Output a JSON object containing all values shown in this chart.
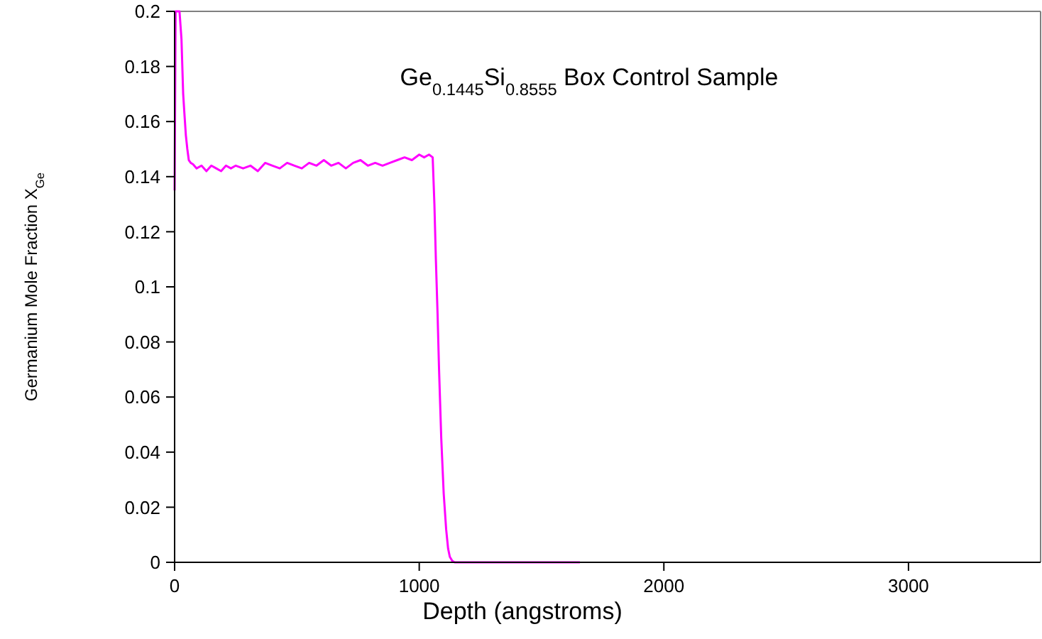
{
  "chart_data": {
    "type": "line",
    "title": "Ge$_{0.1445}$Si$_{0.8555}$ Box Control Sample",
    "xlabel": "Depth (angstroms)",
    "ylabel": "Germanium Mole Fraction X$_{Ge}$",
    "xlim": [
      0,
      3540
    ],
    "ylim": [
      0,
      0.2
    ],
    "xticks": [
      0,
      1000,
      2000,
      3000
    ],
    "yticks": [
      0,
      0.02,
      0.04,
      0.06,
      0.08,
      0.1,
      0.12,
      0.14,
      0.16,
      0.18,
      0.2
    ],
    "grid": false,
    "line_style": "solid",
    "series": [
      {
        "color": "#ff00ff",
        "x": [
          0,
          4,
          12,
          20,
          28,
          35,
          40,
          46,
          52,
          58,
          66,
          75,
          90,
          110,
          130,
          150,
          170,
          190,
          210,
          230,
          250,
          280,
          310,
          340,
          370,
          400,
          430,
          460,
          490,
          520,
          550,
          580,
          610,
          640,
          670,
          700,
          730,
          760,
          790,
          820,
          850,
          880,
          910,
          940,
          970,
          1000,
          1020,
          1040,
          1055,
          1062,
          1068,
          1075,
          1081,
          1090,
          1100,
          1110,
          1118,
          1125,
          1135,
          1145,
          1200,
          1300,
          1400,
          1500,
          1600,
          1657
        ],
        "values": [
          0.135,
          0.2,
          0.2,
          0.2,
          0.19,
          0.17,
          0.163,
          0.155,
          0.15,
          0.146,
          0.145,
          0.1445,
          0.143,
          0.144,
          0.142,
          0.144,
          0.143,
          0.142,
          0.144,
          0.143,
          0.144,
          0.143,
          0.144,
          0.142,
          0.145,
          0.144,
          0.143,
          0.145,
          0.144,
          0.143,
          0.145,
          0.144,
          0.146,
          0.144,
          0.145,
          0.143,
          0.145,
          0.146,
          0.144,
          0.145,
          0.144,
          0.145,
          0.146,
          0.147,
          0.146,
          0.148,
          0.147,
          0.148,
          0.147,
          0.13,
          0.11,
          0.09,
          0.07,
          0.045,
          0.025,
          0.012,
          0.005,
          0.002,
          0.0005,
          0,
          0,
          0,
          0,
          0,
          0,
          0
        ]
      }
    ]
  }
}
